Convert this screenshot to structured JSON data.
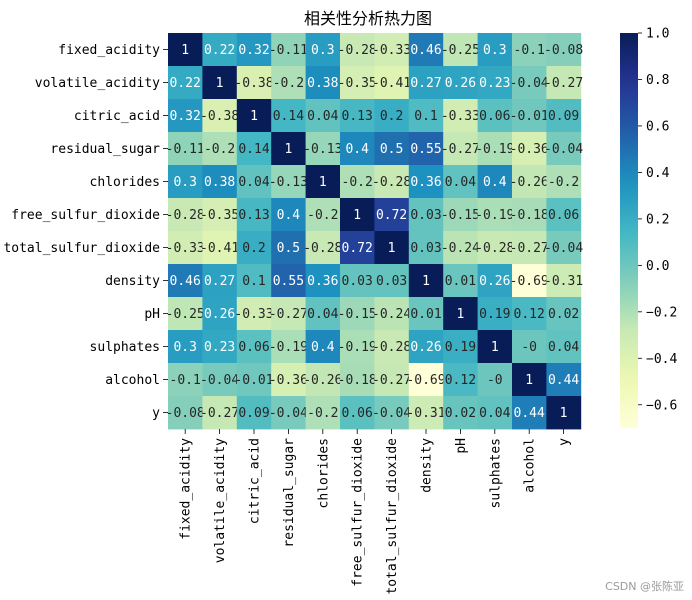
{
  "chart_data": {
    "type": "heatmap",
    "title": "相关性分析热力图",
    "variables": [
      "fixed_acidity",
      "volatile_acidity",
      "citric_acid",
      "residual_sugar",
      "chlorides",
      "free_sulfur_dioxide",
      "total_sulfur_dioxide",
      "density",
      "pH",
      "sulphates",
      "alcohol",
      "y"
    ],
    "values": [
      [
        1,
        0.22,
        0.32,
        -0.11,
        0.3,
        -0.28,
        -0.33,
        0.46,
        -0.25,
        0.3,
        -0.1,
        -0.08
      ],
      [
        0.22,
        1,
        -0.38,
        -0.2,
        0.38,
        -0.35,
        -0.41,
        0.27,
        0.26,
        0.23,
        -0.04,
        -0.27
      ],
      [
        0.32,
        -0.38,
        1,
        0.14,
        0.04,
        0.13,
        0.2,
        0.1,
        -0.33,
        0.06,
        -0.01,
        0.09
      ],
      [
        -0.11,
        -0.2,
        0.14,
        1,
        -0.13,
        0.4,
        0.5,
        0.55,
        -0.27,
        -0.19,
        -0.36,
        -0.04
      ],
      [
        0.3,
        0.38,
        0.04,
        -0.13,
        1,
        -0.2,
        -0.28,
        0.36,
        0.04,
        0.4,
        -0.26,
        -0.2
      ],
      [
        -0.28,
        -0.35,
        0.13,
        0.4,
        -0.2,
        1,
        0.72,
        0.03,
        -0.15,
        -0.19,
        -0.18,
        0.06
      ],
      [
        -0.33,
        -0.41,
        0.2,
        0.5,
        -0.28,
        0.72,
        1,
        0.03,
        -0.24,
        -0.28,
        -0.27,
        -0.04
      ],
      [
        0.46,
        0.27,
        0.1,
        0.55,
        0.36,
        0.03,
        0.03,
        1,
        0.01,
        0.26,
        -0.69,
        -0.31
      ],
      [
        -0.25,
        0.26,
        -0.33,
        -0.27,
        0.04,
        -0.15,
        -0.24,
        0.01,
        1,
        0.19,
        0.12,
        0.02
      ],
      [
        0.3,
        0.23,
        0.06,
        -0.19,
        0.4,
        -0.19,
        -0.28,
        0.26,
        0.19,
        1,
        -0.0,
        0.04
      ],
      [
        -0.1,
        -0.04,
        -0.01,
        -0.36,
        -0.26,
        -0.18,
        -0.27,
        -0.69,
        0.12,
        -0.0,
        1,
        0.44
      ],
      [
        -0.08,
        -0.27,
        0.09,
        -0.04,
        -0.2,
        0.06,
        -0.04,
        -0.31,
        0.02,
        0.04,
        0.44,
        1
      ]
    ],
    "value_labels": [
      [
        "1",
        "0.22",
        "0.32",
        "-0.11",
        "0.3",
        "-0.28",
        "-0.33",
        "0.46",
        "-0.25",
        "0.3",
        "-0.1",
        "-0.08"
      ],
      [
        "0.22",
        "1",
        "-0.38",
        "-0.2",
        "0.38",
        "-0.35",
        "-0.41",
        "0.27",
        "0.26",
        "0.23",
        "-0.04",
        "-0.27"
      ],
      [
        "0.32",
        "-0.38",
        "1",
        "0.14",
        "0.04",
        "0.13",
        "0.2",
        "0.1",
        "-0.33",
        "0.06",
        "-0.01",
        "0.09"
      ],
      [
        "-0.11",
        "-0.2",
        "0.14",
        "1",
        "-0.13",
        "0.4",
        "0.5",
        "0.55",
        "-0.27",
        "-0.19",
        "-0.36",
        "-0.04"
      ],
      [
        "0.3",
        "0.38",
        "0.04",
        "-0.13",
        "1",
        "-0.2",
        "-0.28",
        "0.36",
        "0.04",
        "0.4",
        "-0.26",
        "-0.2"
      ],
      [
        "-0.28",
        "-0.35",
        "0.13",
        "0.4",
        "-0.2",
        "1",
        "0.72",
        "0.03",
        "-0.15",
        "-0.19",
        "-0.18",
        "0.06"
      ],
      [
        "-0.33",
        "-0.41",
        "0.2",
        "0.5",
        "-0.28",
        "0.72",
        "1",
        "0.03",
        "-0.24",
        "-0.28",
        "-0.27",
        "-0.04"
      ],
      [
        "0.46",
        "0.27",
        "0.1",
        "0.55",
        "0.36",
        "0.03",
        "0.03",
        "1",
        "0.01",
        "0.26",
        "-0.69",
        "-0.31"
      ],
      [
        "-0.25",
        "0.26",
        "-0.33",
        "-0.27",
        "0.04",
        "-0.15",
        "-0.24",
        "0.01",
        "1",
        "0.19",
        "0.12",
        "0.02"
      ],
      [
        "0.3",
        "0.23",
        "0.06",
        "-0.19",
        "0.4",
        "-0.19",
        "-0.28",
        "0.26",
        "0.19",
        "1",
        "-0",
        "0.04"
      ],
      [
        "-0.1",
        "-0.04",
        "-0.01",
        "-0.36",
        "-0.26",
        "-0.18",
        "-0.27",
        "-0.69",
        "0.12",
        "-0",
        "1",
        "0.44"
      ],
      [
        "-0.08",
        "-0.27",
        "0.09",
        "-0.04",
        "-0.2",
        "0.06",
        "-0.04",
        "-0.31",
        "0.02",
        "0.04",
        "0.44",
        "1"
      ]
    ],
    "colormap": "YlGnBu",
    "vmin": -0.7,
    "vmax": 1.0,
    "colorbar_ticks": [
      1.0,
      0.8,
      0.6,
      0.4,
      0.2,
      0.0,
      -0.2,
      -0.4,
      -0.6
    ],
    "colorbar_tick_labels": [
      "1.0",
      "0.8",
      "0.6",
      "0.4",
      "0.2",
      "0.0",
      "−0.2",
      "−0.4",
      "−0.6"
    ],
    "colorbar_placement": "right",
    "grid": false
  },
  "watermark": "CSDN @张陈亚"
}
